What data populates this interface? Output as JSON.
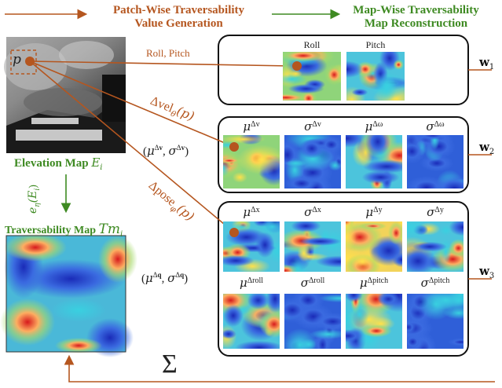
{
  "headers": {
    "stage1": "Patch-Wise Traversability\nValue Generation",
    "stage2": "Map-Wise Traversability\nMap Reconstruction"
  },
  "left": {
    "elevation_label": "Elevation Map",
    "elevation_symbol": "E",
    "elevation_sub": "i",
    "patch_symbol": "p",
    "encoder_label": "e",
    "encoder_sub": "η",
    "encoder_arg": "(E",
    "encoder_arg_sub": "i",
    "encoder_close": ")",
    "trav_label": "Traversability Map",
    "trav_symbol": "Tm",
    "trav_sub": "i"
  },
  "arrows": {
    "roll_pitch": "Roll, Pitch",
    "vel_label": "Δvel",
    "vel_sub": "θ",
    "vel_arg": "(p)",
    "vel_params": "(μ^{Δv}, σ^{Δv})",
    "pose_label": "Δpose",
    "pose_sub": "φ",
    "pose_arg": "(p)",
    "pose_params": "(μ^{Δq}, σ^{Δq})",
    "sum": "Σ"
  },
  "weights": [
    "w",
    "w",
    "w"
  ],
  "weight_subs": [
    "1",
    "2",
    "3"
  ],
  "group1": {
    "tiles": [
      "Roll",
      "Pitch"
    ]
  },
  "group2": {
    "tiles": [
      "μ^{Δv}",
      "σ^{Δv}",
      "μ^{Δω}",
      "σ^{Δω}"
    ]
  },
  "group3": {
    "row1": [
      "μ^{Δx}",
      "σ^{Δx}",
      "μ^{Δy}",
      "σ^{Δy}"
    ],
    "row2": [
      "μ^{Δroll}",
      "σ^{Δroll}",
      "μ^{Δpitch}",
      "σ^{Δpitch}"
    ]
  },
  "colors": {
    "brown": "#b5561f",
    "green": "#3e8a22",
    "box": "#111111"
  }
}
